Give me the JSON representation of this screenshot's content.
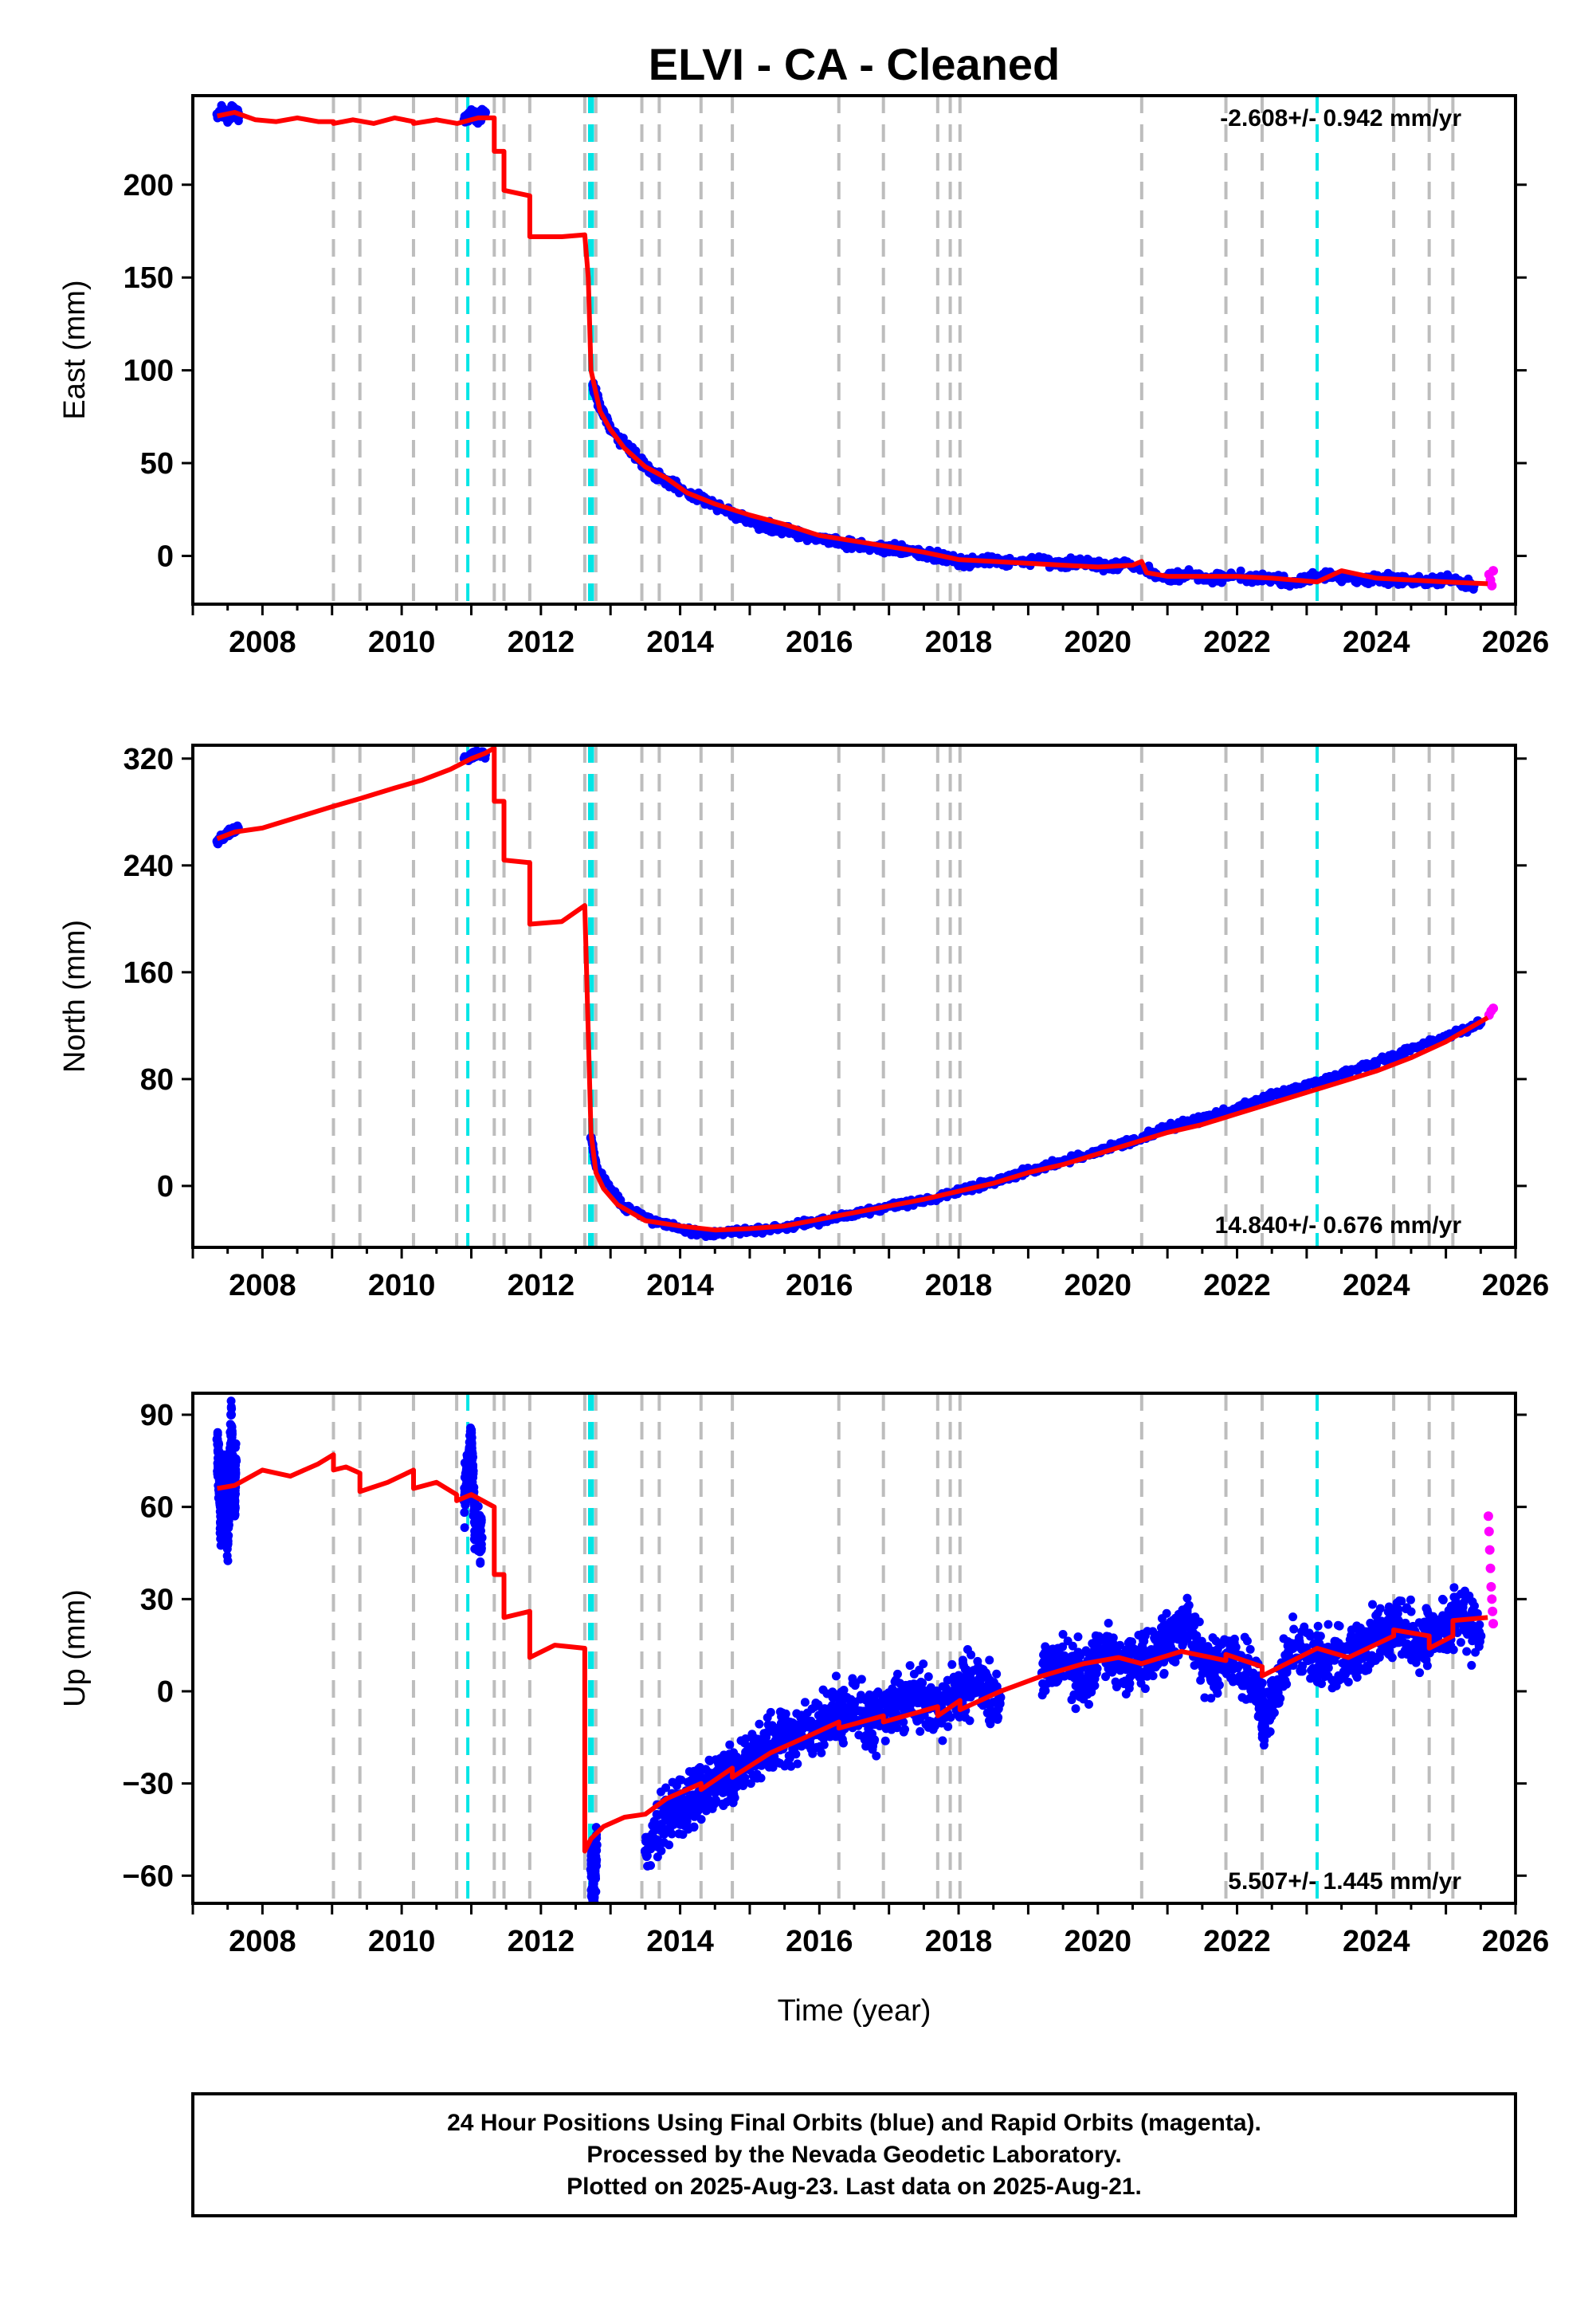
{
  "caption": {
    "line1": "24 Hour Positions Using Final Orbits (blue) and Rapid Orbits (magenta).",
    "line2": "Processed by the Nevada Geodetic Laboratory.",
    "line3": "Plotted on 2025-Aug-23. Last data on 2025-Aug-21."
  },
  "colors": {
    "final_orbits": "#0000ff",
    "rapid_orbits": "#ff00ff",
    "model": "#ff0000",
    "equipment_change": "#bdbdbd",
    "earthquake": "#00e5e5"
  },
  "chart_data": [
    {
      "type": "scatter",
      "title": "ELVI  - CA - Cleaned",
      "xlabel": "",
      "ylabel": "East (mm)",
      "xlim": [
        2007.0,
        2026.0
      ],
      "ylim": [
        -26,
        248
      ],
      "x_ticks": [
        2008,
        2010,
        2012,
        2014,
        2016,
        2018,
        2020,
        2022,
        2024,
        2026
      ],
      "y_ticks": [
        0,
        50,
        100,
        150,
        200
      ],
      "rate_text": "-2.608+/- 0.942 mm/yr",
      "rate_position": "top-right",
      "grid": false,
      "equipment_change_lines": [
        2009.02,
        2009.4,
        2010.17,
        2010.79,
        2011.33,
        2011.47,
        2011.84,
        2012.63,
        2012.79,
        2013.45,
        2013.7,
        2014.3,
        2014.75,
        2016.28,
        2016.92,
        2017.7,
        2017.88,
        2018.02,
        2020.63,
        2021.84,
        2022.36,
        2024.25,
        2024.76,
        2025.1
      ],
      "earthquake_lines": [
        2010.95,
        2012.7,
        2012.74,
        2023.15
      ],
      "series": [
        {
          "role": "model",
          "x": [
            2007.35,
            2007.6,
            2007.9,
            2008.2,
            2008.5,
            2008.8,
            2009.02,
            2009.02,
            2009.3,
            2009.6,
            2009.9,
            2010.17,
            2010.17,
            2010.5,
            2010.8,
            2011.1,
            2011.33,
            2011.33,
            2011.47,
            2011.47,
            2011.84,
            2011.84,
            2012.3,
            2012.63,
            2012.63,
            2012.68,
            2012.72,
            2012.79,
            2012.85,
            2013.0,
            2013.2,
            2013.5,
            2013.8,
            2014.1,
            2014.5,
            2015.0,
            2015.5,
            2016.0,
            2016.5,
            2017.0,
            2017.5,
            2018.0,
            2018.5,
            2019.0,
            2019.5,
            2020.0,
            2020.5,
            2020.63,
            2020.7,
            2021.0,
            2021.5,
            2022.0,
            2022.5,
            2023.15,
            2023.5,
            2024.0,
            2024.5,
            2025.0,
            2025.6
          ],
          "y": [
            237,
            239,
            235,
            234,
            236,
            234,
            234,
            233,
            235,
            233,
            236,
            234,
            233,
            235,
            233,
            236,
            236,
            218,
            218,
            197,
            194,
            172,
            172,
            173,
            173,
            150,
            100,
            88,
            78,
            68,
            58,
            48,
            42,
            34,
            28,
            22,
            17,
            11,
            8,
            5,
            2,
            -2,
            -3,
            -4,
            -5,
            -6,
            -5,
            -3,
            -9,
            -11,
            -11,
            -11,
            -12,
            -14,
            -8,
            -12,
            -13,
            -14,
            -15
          ]
        },
        {
          "role": "final_orbits",
          "x": [
            2007.35,
            2007.42,
            2007.5,
            2007.58,
            2007.66,
            2010.9,
            2011.0,
            2011.1,
            2011.2,
            2012.75,
            2012.85,
            2013.0,
            2013.3,
            2013.6,
            2013.9,
            2014.2,
            2014.5,
            2014.8,
            2015.1,
            2015.4,
            2015.7,
            2016.0,
            2016.3,
            2016.6,
            2016.9,
            2017.2,
            2017.5,
            2017.8,
            2018.1,
            2018.4,
            2018.7,
            2019.2,
            2019.5,
            2019.8,
            2020.1,
            2020.4,
            2021.0,
            2021.3,
            2021.6,
            2021.9,
            2022.4,
            2022.8,
            2023.3,
            2023.7,
            2024.2,
            2024.6,
            2025.0,
            2025.4
          ],
          "y": [
            238,
            240,
            236,
            241,
            237,
            235,
            238,
            236,
            239,
            92,
            80,
            68,
            56,
            45,
            38,
            32,
            27,
            22,
            17,
            15,
            12,
            9,
            7,
            6,
            4,
            3,
            1,
            -1,
            -3,
            -2,
            -4,
            -2,
            -5,
            -3,
            -6,
            -4,
            -12,
            -10,
            -13,
            -11,
            -12,
            -14,
            -10,
            -13,
            -12,
            -14,
            -13,
            -16
          ]
        },
        {
          "role": "rapid_orbits",
          "x": [
            2025.62,
            2025.64,
            2025.66,
            2025.68
          ],
          "y": [
            -10,
            -13,
            -16,
            -8
          ]
        }
      ]
    },
    {
      "type": "scatter",
      "title": "",
      "xlabel": "",
      "ylabel": "North (mm)",
      "xlim": [
        2007.0,
        2026.0
      ],
      "ylim": [
        -46,
        330
      ],
      "x_ticks": [
        2008,
        2010,
        2012,
        2014,
        2016,
        2018,
        2020,
        2022,
        2024,
        2026
      ],
      "y_ticks": [
        0,
        80,
        160,
        240,
        320
      ],
      "rate_text": "14.840+/- 0.676 mm/yr",
      "rate_position": "bottom-right",
      "grid": false,
      "equipment_change_lines": [
        2009.02,
        2009.4,
        2010.17,
        2010.79,
        2011.33,
        2011.47,
        2011.84,
        2012.63,
        2012.79,
        2013.45,
        2013.7,
        2014.3,
        2014.75,
        2016.28,
        2016.92,
        2017.7,
        2017.88,
        2018.02,
        2020.63,
        2021.84,
        2022.36,
        2024.25,
        2024.76,
        2025.1
      ],
      "earthquake_lines": [
        2010.95,
        2012.7,
        2012.74,
        2023.15
      ],
      "series": [
        {
          "role": "model",
          "x": [
            2007.35,
            2007.6,
            2008.0,
            2008.5,
            2009.0,
            2009.4,
            2009.9,
            2010.3,
            2010.7,
            2011.0,
            2011.2,
            2011.33,
            2011.33,
            2011.47,
            2011.47,
            2011.84,
            2011.84,
            2012.3,
            2012.63,
            2012.63,
            2012.72,
            2012.79,
            2012.9,
            2013.1,
            2013.5,
            2014.0,
            2014.5,
            2015.0,
            2015.5,
            2016.0,
            2016.5,
            2017.0,
            2017.5,
            2018.0,
            2018.5,
            2019.0,
            2019.5,
            2020.0,
            2020.5,
            2021.0,
            2021.5,
            2022.0,
            2022.5,
            2023.0,
            2023.5,
            2024.0,
            2024.5,
            2025.0,
            2025.6
          ],
          "y": [
            260,
            265,
            268,
            276,
            284,
            290,
            298,
            304,
            312,
            320,
            324,
            328,
            288,
            288,
            244,
            242,
            196,
            198,
            210,
            210,
            40,
            10,
            -2,
            -14,
            -26,
            -30,
            -33,
            -32,
            -30,
            -25,
            -20,
            -15,
            -10,
            -4,
            2,
            10,
            16,
            24,
            32,
            40,
            46,
            54,
            62,
            70,
            78,
            86,
            96,
            108,
            126
          ]
        },
        {
          "role": "final_orbits",
          "x": [
            2007.35,
            2007.45,
            2007.55,
            2007.65,
            2010.9,
            2011.0,
            2011.1,
            2011.2,
            2012.72,
            2012.8,
            2013.2,
            2013.6,
            2014.0,
            2014.4,
            2014.8,
            2015.2,
            2015.6,
            2016.0,
            2016.4,
            2016.8,
            2017.2,
            2017.6,
            2018.0,
            2018.4,
            2018.8,
            2019.2,
            2019.6,
            2020.0,
            2020.4,
            2020.8,
            2021.2,
            2021.6,
            2022.0,
            2022.4,
            2022.8,
            2023.2,
            2023.6,
            2024.0,
            2024.4,
            2024.8,
            2025.2,
            2025.5
          ],
          "y": [
            258,
            262,
            266,
            268,
            320,
            322,
            324,
            323,
            36,
            14,
            -16,
            -26,
            -32,
            -36,
            -34,
            -33,
            -30,
            -26,
            -22,
            -18,
            -14,
            -10,
            -4,
            2,
            8,
            14,
            20,
            26,
            32,
            40,
            46,
            52,
            58,
            66,
            72,
            78,
            86,
            92,
            100,
            108,
            116,
            122
          ]
        },
        {
          "role": "rapid_orbits",
          "x": [
            2025.62,
            2025.65,
            2025.68
          ],
          "y": [
            128,
            131,
            133
          ]
        }
      ]
    },
    {
      "type": "scatter",
      "title": "",
      "xlabel": "Time (year)",
      "ylabel": "Up (mm)",
      "xlim": [
        2007.0,
        2026.0
      ],
      "ylim": [
        -69,
        97
      ],
      "x_ticks": [
        2008,
        2010,
        2012,
        2014,
        2016,
        2018,
        2020,
        2022,
        2024,
        2026
      ],
      "y_ticks": [
        -60,
        -30,
        0,
        30,
        60,
        90
      ],
      "rate_text": "5.507+/- 1.445 mm/yr",
      "rate_position": "bottom-right",
      "grid": false,
      "equipment_change_lines": [
        2009.02,
        2009.4,
        2010.17,
        2010.79,
        2011.33,
        2011.47,
        2011.84,
        2012.63,
        2012.79,
        2013.45,
        2013.7,
        2014.3,
        2014.75,
        2016.28,
        2016.92,
        2017.7,
        2017.88,
        2018.02,
        2020.63,
        2021.84,
        2022.36,
        2024.25,
        2024.76,
        2025.1
      ],
      "earthquake_lines": [
        2010.95,
        2012.7,
        2012.74,
        2023.15
      ],
      "series": [
        {
          "role": "model",
          "x": [
            2007.35,
            2007.6,
            2008.0,
            2008.4,
            2008.8,
            2009.02,
            2009.02,
            2009.2,
            2009.4,
            2009.4,
            2009.8,
            2010.17,
            2010.17,
            2010.5,
            2010.79,
            2010.79,
            2011.0,
            2011.33,
            2011.33,
            2011.47,
            2011.47,
            2011.84,
            2011.84,
            2012.2,
            2012.63,
            2012.63,
            2012.72,
            2012.9,
            2013.2,
            2013.5,
            2013.8,
            2014.3,
            2014.3,
            2014.75,
            2014.75,
            2015.3,
            2015.8,
            2016.28,
            2016.28,
            2016.92,
            2016.92,
            2017.7,
            2017.7,
            2018.02,
            2018.02,
            2018.6,
            2019.2,
            2019.8,
            2020.3,
            2020.63,
            2021.2,
            2021.84,
            2021.84,
            2022.36,
            2022.36,
            2023.15,
            2023.6,
            2024.25,
            2024.25,
            2024.76,
            2024.76,
            2025.1,
            2025.1,
            2025.6
          ],
          "y": [
            66,
            67,
            72,
            70,
            74,
            77,
            72,
            73,
            71,
            65,
            68,
            72,
            66,
            68,
            64,
            62,
            64,
            60,
            38,
            38,
            24,
            26,
            11,
            15,
            14,
            -52,
            -48,
            -44,
            -41,
            -40,
            -35,
            -30,
            -32,
            -25,
            -28,
            -20,
            -15,
            -10,
            -12,
            -8,
            -10,
            -5,
            -8,
            -3,
            -6,
            0,
            5,
            9,
            11,
            9,
            13,
            10,
            12,
            8,
            5,
            14,
            11,
            18,
            20,
            18,
            14,
            18,
            23,
            24
          ]
        },
        {
          "role": "final_orbits",
          "x": [
            2007.35,
            2007.4,
            2007.45,
            2007.5,
            2007.55,
            2007.6,
            2007.62,
            2010.9,
            2011.0,
            2011.05,
            2011.15,
            2012.72,
            2012.75,
            2012.8,
            2013.5,
            2013.8,
            2014.1,
            2014.4,
            2014.7,
            2015.0,
            2015.3,
            2015.6,
            2015.9,
            2016.2,
            2016.5,
            2016.8,
            2017.1,
            2017.4,
            2017.7,
            2018.0,
            2018.3,
            2018.6,
            2019.2,
            2019.5,
            2019.8,
            2020.1,
            2020.4,
            2020.7,
            2021.0,
            2021.3,
            2021.6,
            2021.9,
            2022.3,
            2022.4,
            2022.8,
            2023.3,
            2023.7,
            2024.0,
            2024.3,
            2024.6,
            2024.9,
            2025.2,
            2025.5
          ],
          "y": [
            82,
            55,
            70,
            48,
            90,
            62,
            75,
            62,
            80,
            55,
            50,
            -58,
            -65,
            -50,
            -52,
            -40,
            -38,
            -30,
            -28,
            -22,
            -18,
            -14,
            -12,
            -8,
            -6,
            -10,
            -4,
            -2,
            -6,
            0,
            4,
            -2,
            6,
            10,
            4,
            14,
            8,
            12,
            16,
            22,
            6,
            12,
            0,
            -10,
            14,
            10,
            14,
            18,
            22,
            16,
            20,
            24,
            18
          ]
        },
        {
          "role": "rapid_orbits",
          "x": [
            2025.61,
            2025.62,
            2025.63,
            2025.64,
            2025.65,
            2025.66,
            2025.67,
            2025.68
          ],
          "y": [
            57,
            52,
            46,
            40,
            34,
            30,
            26,
            22
          ]
        }
      ]
    }
  ]
}
